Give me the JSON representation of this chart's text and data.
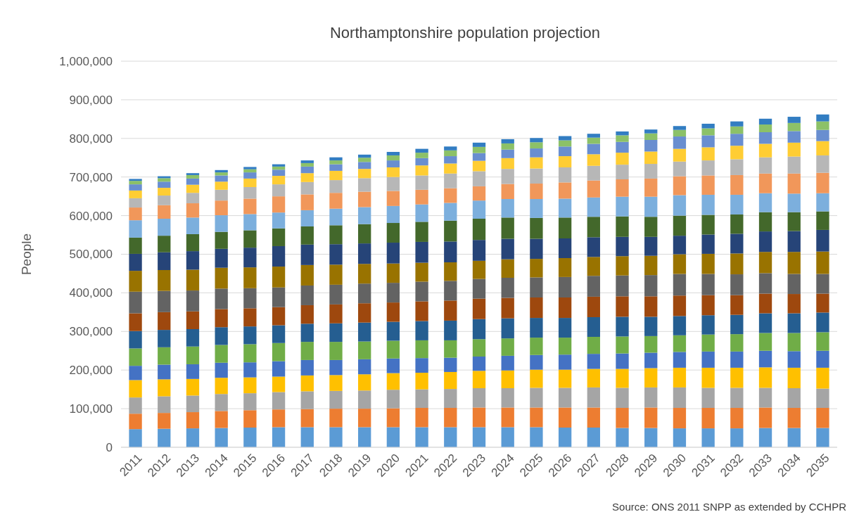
{
  "chart_data": {
    "type": "bar",
    "stacked": true,
    "title": "Northamptonshire population projection",
    "ylabel": "People",
    "annotations": [
      "Source: ONS 2011 SNPP as extended by CCHPR"
    ],
    "categories": [
      "2011",
      "2012",
      "2013",
      "2014",
      "2015",
      "2016",
      "2017",
      "2018",
      "2019",
      "2020",
      "2021",
      "2022",
      "2023",
      "2024",
      "2025",
      "2026",
      "2027",
      "2028",
      "2029",
      "2030",
      "2031",
      "2032",
      "2033",
      "2034",
      "2035"
    ],
    "ylim": [
      0,
      1000000
    ],
    "yticks": [
      0,
      {
        "value": 100000,
        "label": "100,000"
      },
      {
        "value": 200000,
        "label": "200,000"
      },
      {
        "value": 300000,
        "label": "300,000"
      },
      {
        "value": 400000,
        "label": "400,000"
      },
      {
        "value": 500000,
        "label": "500,000"
      },
      {
        "value": 600000,
        "label": "600,000"
      },
      {
        "value": 700000,
        "label": "700,000"
      },
      {
        "value": 800000,
        "label": "800,000"
      },
      {
        "value": 900000,
        "label": "900,000"
      },
      {
        "value": 1000000,
        "label": "1,000,000"
      }
    ],
    "grid": "y",
    "series": [
      {
        "color": "#5b9bd5",
        "values": [
          47000,
          48000,
          49000,
          50000,
          51000,
          52000,
          52000,
          52000,
          52000,
          52000,
          52000,
          52000,
          52000,
          52000,
          52000,
          51000,
          51000,
          50000,
          50000,
          49000,
          49000,
          49000,
          50000,
          50000,
          50000
        ]
      },
      {
        "color": "#ed7d31",
        "values": [
          40000,
          41000,
          42000,
          44000,
          45000,
          46000,
          47000,
          48000,
          48000,
          49000,
          50000,
          50000,
          51000,
          51000,
          51000,
          52000,
          52000,
          52000,
          53000,
          53000,
          53000,
          53000,
          53000,
          52000,
          52000
        ]
      },
      {
        "color": "#a5a5a5",
        "values": [
          42000,
          43000,
          43000,
          44000,
          44000,
          45000,
          46000,
          46000,
          47000,
          48000,
          48000,
          49000,
          50000,
          50000,
          51000,
          51000,
          52000,
          52000,
          52000,
          53000,
          52000,
          52000,
          51000,
          51000,
          50000
        ]
      },
      {
        "color": "#ffc000",
        "values": [
          45000,
          44000,
          43000,
          42000,
          41000,
          40000,
          41000,
          41000,
          42000,
          43000,
          43000,
          44000,
          45000,
          46000,
          47000,
          47000,
          48000,
          49000,
          50000,
          51000,
          52000,
          52000,
          53000,
          53000,
          54000
        ]
      },
      {
        "color": "#4472c4",
        "values": [
          37000,
          38000,
          38000,
          39000,
          39000,
          40000,
          40000,
          39000,
          39000,
          38000,
          38000,
          37000,
          37000,
          38000,
          38000,
          39000,
          39000,
          40000,
          40000,
          41000,
          42000,
          42000,
          43000,
          43000,
          44000
        ]
      },
      {
        "color": "#70ad47",
        "values": [
          45000,
          45000,
          46000,
          46000,
          47000,
          47000,
          47000,
          47000,
          46000,
          46000,
          46000,
          45000,
          45000,
          45000,
          45000,
          44000,
          44000,
          44000,
          43000,
          43000,
          44000,
          45000,
          46000,
          47000,
          48000
        ]
      },
      {
        "color": "#255e91",
        "values": [
          45000,
          45000,
          45000,
          46000,
          46000,
          46000,
          47000,
          48000,
          49000,
          49000,
          50000,
          51000,
          52000,
          52000,
          51000,
          51000,
          51000,
          51000,
          50000,
          50000,
          50000,
          50000,
          51000,
          51000,
          51000
        ]
      },
      {
        "color": "#9e480e",
        "values": [
          46000,
          46000,
          46000,
          47000,
          47000,
          47000,
          48000,
          49000,
          50000,
          50000,
          51000,
          52000,
          53000,
          53000,
          53000,
          53000,
          53000,
          53000,
          53000,
          53000,
          52000,
          51000,
          51000,
          50000,
          49000
        ]
      },
      {
        "color": "#636363",
        "values": [
          56000,
          55000,
          54000,
          53000,
          52000,
          51000,
          51000,
          51000,
          51000,
          51000,
          51000,
          51000,
          51000,
          52000,
          52000,
          53000,
          54000,
          54000,
          55000,
          56000,
          55000,
          54000,
          53000,
          52000,
          51000
        ]
      },
      {
        "color": "#997300",
        "values": [
          54000,
          54000,
          54000,
          54000,
          54000,
          54000,
          53000,
          52000,
          51000,
          50000,
          49000,
          48000,
          47000,
          48000,
          48000,
          49000,
          49000,
          50000,
          50000,
          51000,
          52000,
          54000,
          55000,
          57000,
          58000
        ]
      },
      {
        "color": "#264478",
        "values": [
          44000,
          46000,
          48000,
          49000,
          51000,
          53000,
          53000,
          53000,
          53000,
          54000,
          54000,
          54000,
          54000,
          53000,
          52000,
          51000,
          51000,
          50000,
          49000,
          48000,
          50000,
          51000,
          53000,
          54000,
          56000
        ]
      },
      {
        "color": "#43682b",
        "values": [
          42000,
          43000,
          44000,
          44000,
          45000,
          46000,
          47000,
          49000,
          50000,
          51000,
          52000,
          54000,
          55000,
          55000,
          54000,
          54000,
          53000,
          53000,
          52000,
          52000,
          51000,
          50000,
          50000,
          49000,
          48000
        ]
      },
      {
        "color": "#7cafdd",
        "values": [
          45000,
          44000,
          43000,
          43000,
          42000,
          41000,
          42000,
          43000,
          44000,
          44000,
          45000,
          46000,
          47000,
          48000,
          49000,
          49000,
          50000,
          51000,
          52000,
          53000,
          52000,
          51000,
          49000,
          48000,
          47000
        ]
      },
      {
        "color": "#f1975a",
        "values": [
          33000,
          35000,
          37000,
          38000,
          40000,
          42000,
          41000,
          41000,
          40000,
          39000,
          38000,
          38000,
          37000,
          39000,
          40000,
          42000,
          44000,
          45000,
          47000,
          49000,
          50000,
          51000,
          51000,
          52000,
          53000
        ]
      },
      {
        "color": "#b7b7b7",
        "values": [
          24000,
          25000,
          27000,
          28000,
          30000,
          31000,
          32000,
          33000,
          35000,
          36000,
          37000,
          38000,
          39000,
          39000,
          39000,
          39000,
          38000,
          38000,
          38000,
          38000,
          39000,
          41000,
          42000,
          44000,
          45000
        ]
      },
      {
        "color": "#ffcd33",
        "values": [
          20000,
          20000,
          21000,
          21000,
          22000,
          22000,
          23000,
          24000,
          24000,
          25000,
          26000,
          26000,
          27000,
          28000,
          29000,
          29000,
          30000,
          31000,
          32000,
          33000,
          34000,
          35000,
          35000,
          36000,
          37000
        ]
      },
      {
        "color": "#698ed0",
        "values": [
          16000,
          16000,
          16000,
          16000,
          16000,
          16000,
          17000,
          17000,
          18000,
          18000,
          19000,
          19000,
          20000,
          22000,
          23000,
          25000,
          27000,
          28000,
          30000,
          32000,
          31000,
          31000,
          30000,
          30000,
          29000
        ]
      },
      {
        "color": "#8cc168",
        "values": [
          9000,
          9000,
          9000,
          8000,
          8000,
          8000,
          9000,
          10000,
          11000,
          13000,
          14000,
          15000,
          16000,
          16000,
          16000,
          16000,
          16000,
          17000,
          17000,
          17000,
          18000,
          19000,
          20000,
          21000,
          22000
        ]
      },
      {
        "color": "#327dc2",
        "values": [
          5000,
          5000,
          5000,
          6000,
          6000,
          6000,
          7000,
          8000,
          8000,
          9000,
          10000,
          10000,
          11000,
          11000,
          11000,
          11000,
          10000,
          10000,
          10000,
          10000,
          12000,
          13000,
          15000,
          16000,
          18000
        ]
      }
    ]
  }
}
